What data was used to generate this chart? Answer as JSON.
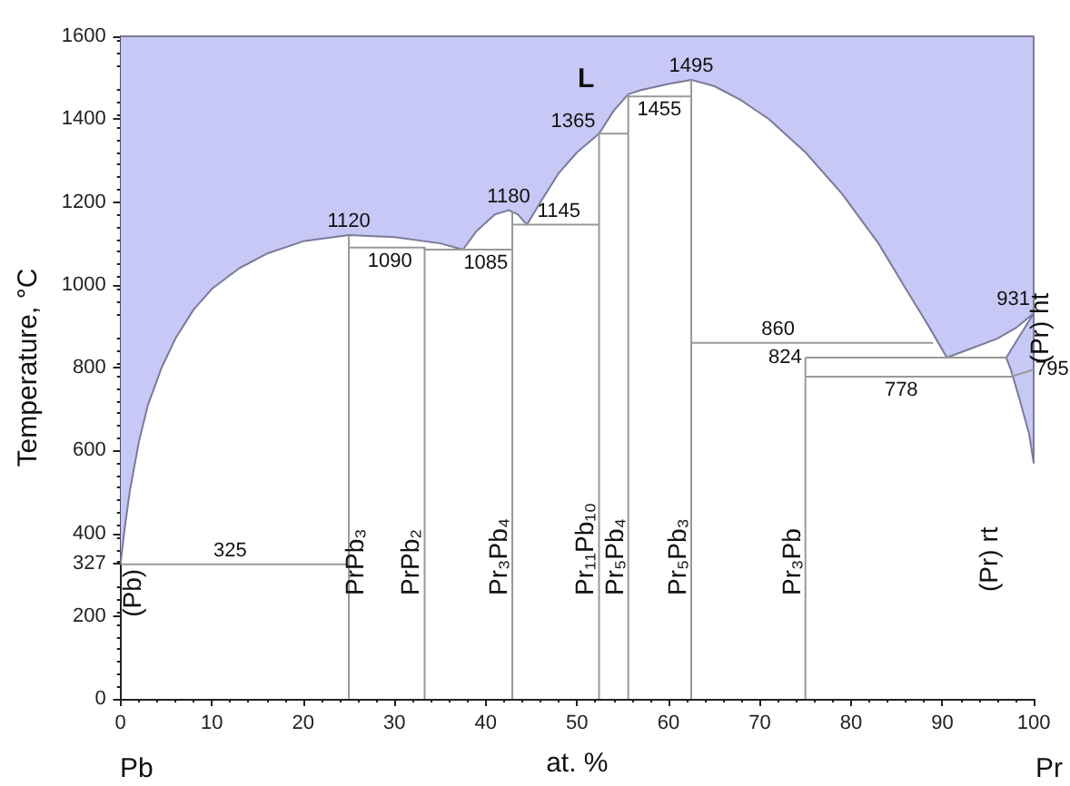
{
  "chart_data": {
    "type": "line",
    "xlabel": "at. %",
    "ylabel": "Temperature, °C",
    "xlim": [
      0,
      100
    ],
    "xticks": [
      0,
      10,
      20,
      30,
      40,
      50,
      60,
      70,
      80,
      90,
      100
    ],
    "ylim": [
      0,
      1600
    ],
    "yticks": [
      0,
      200,
      327,
      400,
      600,
      800,
      1000,
      1200,
      1400,
      1600
    ],
    "series": [
      {
        "type": "area",
        "color": "#c8c8f6",
        "x": [
          0,
          0.5,
          1,
          2,
          3,
          4.5,
          6,
          8,
          10,
          13,
          16,
          20,
          25,
          30,
          35,
          37.5,
          39,
          41,
          42.5,
          43.5,
          44.5,
          46,
          48,
          50,
          52.4,
          54,
          55.6,
          57,
          60,
          62.5,
          65,
          68,
          71,
          75,
          79,
          83,
          86,
          88.5,
          90.5,
          93,
          96,
          98,
          100,
          97,
          97.5,
          98.5,
          99.5,
          100,
          100,
          0
        ],
        "values": [
          327,
          420,
          500,
          620,
          710,
          800,
          870,
          940,
          990,
          1040,
          1075,
          1105,
          1120,
          1115,
          1100,
          1085,
          1130,
          1170,
          1180,
          1170,
          1145,
          1200,
          1270,
          1320,
          1365,
          1420,
          1460,
          1470,
          1485,
          1495,
          1480,
          1445,
          1400,
          1320,
          1220,
          1100,
          990,
          900,
          824,
          845,
          870,
          895,
          931,
          824,
          795,
          720,
          640,
          570,
          1600,
          1600
        ]
      },
      {
        "color": "#999999",
        "x": [
          0,
          25
        ],
        "values": [
          325,
          325
        ]
      },
      {
        "color": "#999999",
        "x": [
          25,
          33.3,
          33.3,
          42.9
        ],
        "values": [
          1090,
          1090,
          1085,
          1085
        ]
      },
      {
        "color": "#999999",
        "x": [
          42.9,
          52.4
        ],
        "values": [
          1145,
          1145
        ]
      },
      {
        "color": "#999999",
        "x": [
          52.4,
          55.6
        ],
        "values": [
          1365,
          1365
        ]
      },
      {
        "color": "#999999",
        "x": [
          55.6,
          62.5
        ],
        "values": [
          1455,
          1455
        ]
      },
      {
        "color": "#999999",
        "x": [
          62.5,
          89
        ],
        "values": [
          860,
          860
        ]
      },
      {
        "color": "#999999",
        "x": [
          75,
          97
        ],
        "values": [
          824,
          824
        ]
      },
      {
        "color": "#999999",
        "x": [
          75,
          97.5,
          100
        ],
        "values": [
          778,
          778,
          795
        ]
      },
      {
        "color": "#999999",
        "x": [
          25,
          25
        ],
        "values": [
          0,
          1120
        ]
      },
      {
        "color": "#999999",
        "x": [
          33.3,
          33.3
        ],
        "values": [
          0,
          1090
        ]
      },
      {
        "color": "#999999",
        "x": [
          42.9,
          42.9
        ],
        "values": [
          0,
          1180
        ]
      },
      {
        "color": "#999999",
        "x": [
          52.4,
          52.4
        ],
        "values": [
          0,
          1365
        ]
      },
      {
        "color": "#999999",
        "x": [
          55.6,
          55.6
        ],
        "values": [
          0,
          1460
        ]
      },
      {
        "color": "#999999",
        "x": [
          62.5,
          62.5
        ],
        "values": [
          0,
          1495
        ]
      },
      {
        "color": "#999999",
        "x": [
          75,
          75
        ],
        "values": [
          0,
          824
        ]
      }
    ],
    "annotations": [
      "Pb",
      "Pr",
      "L",
      "(Pr) rt",
      {
        "text": "1120",
        "x": 25,
        "y": 1120
      },
      {
        "text": "1090",
        "x": 29.5,
        "y": 1090
      },
      {
        "text": "1085",
        "x": 40,
        "y": 1085
      },
      {
        "text": "1180",
        "x": 42.5,
        "y": 1180
      },
      {
        "text": "1145",
        "x": 48,
        "y": 1145
      },
      {
        "text": "1365",
        "x": 52.4,
        "y": 1365
      },
      {
        "text": "1455",
        "x": 59,
        "y": 1455
      },
      {
        "text": "1495",
        "x": 62.5,
        "y": 1495
      },
      {
        "text": "860",
        "x": 72,
        "y": 860
      },
      {
        "text": "824",
        "x": 75,
        "y": 824
      },
      {
        "text": "778",
        "x": 85.5,
        "y": 778
      },
      {
        "text": "931",
        "x": 100,
        "y": 931
      },
      {
        "text": "795",
        "x": 100,
        "y": 795
      },
      {
        "text": "325",
        "x": 12,
        "y": 325
      },
      {
        "text": "(Pb)",
        "x": 0,
        "y": 327
      },
      {
        "text": "PrPb₃",
        "x": 25,
        "y": 250
      },
      {
        "text": "PrPb₂",
        "x": 33.3,
        "y": 250
      },
      {
        "text": "Pr₃Pb₄",
        "x": 42.9,
        "y": 250
      },
      {
        "text": "Pr₁₁Pb₁₀",
        "x": 52.4,
        "y": 250
      },
      {
        "text": "Pr₅Pb₄",
        "x": 55.6,
        "y": 250
      },
      {
        "text": "Pr₅Pb₃",
        "x": 62.5,
        "y": 250
      },
      {
        "text": "Pr₃Pb",
        "x": 75,
        "y": 250
      },
      {
        "text": "(Pr) ht",
        "x": 100,
        "y": 810
      }
    ]
  }
}
